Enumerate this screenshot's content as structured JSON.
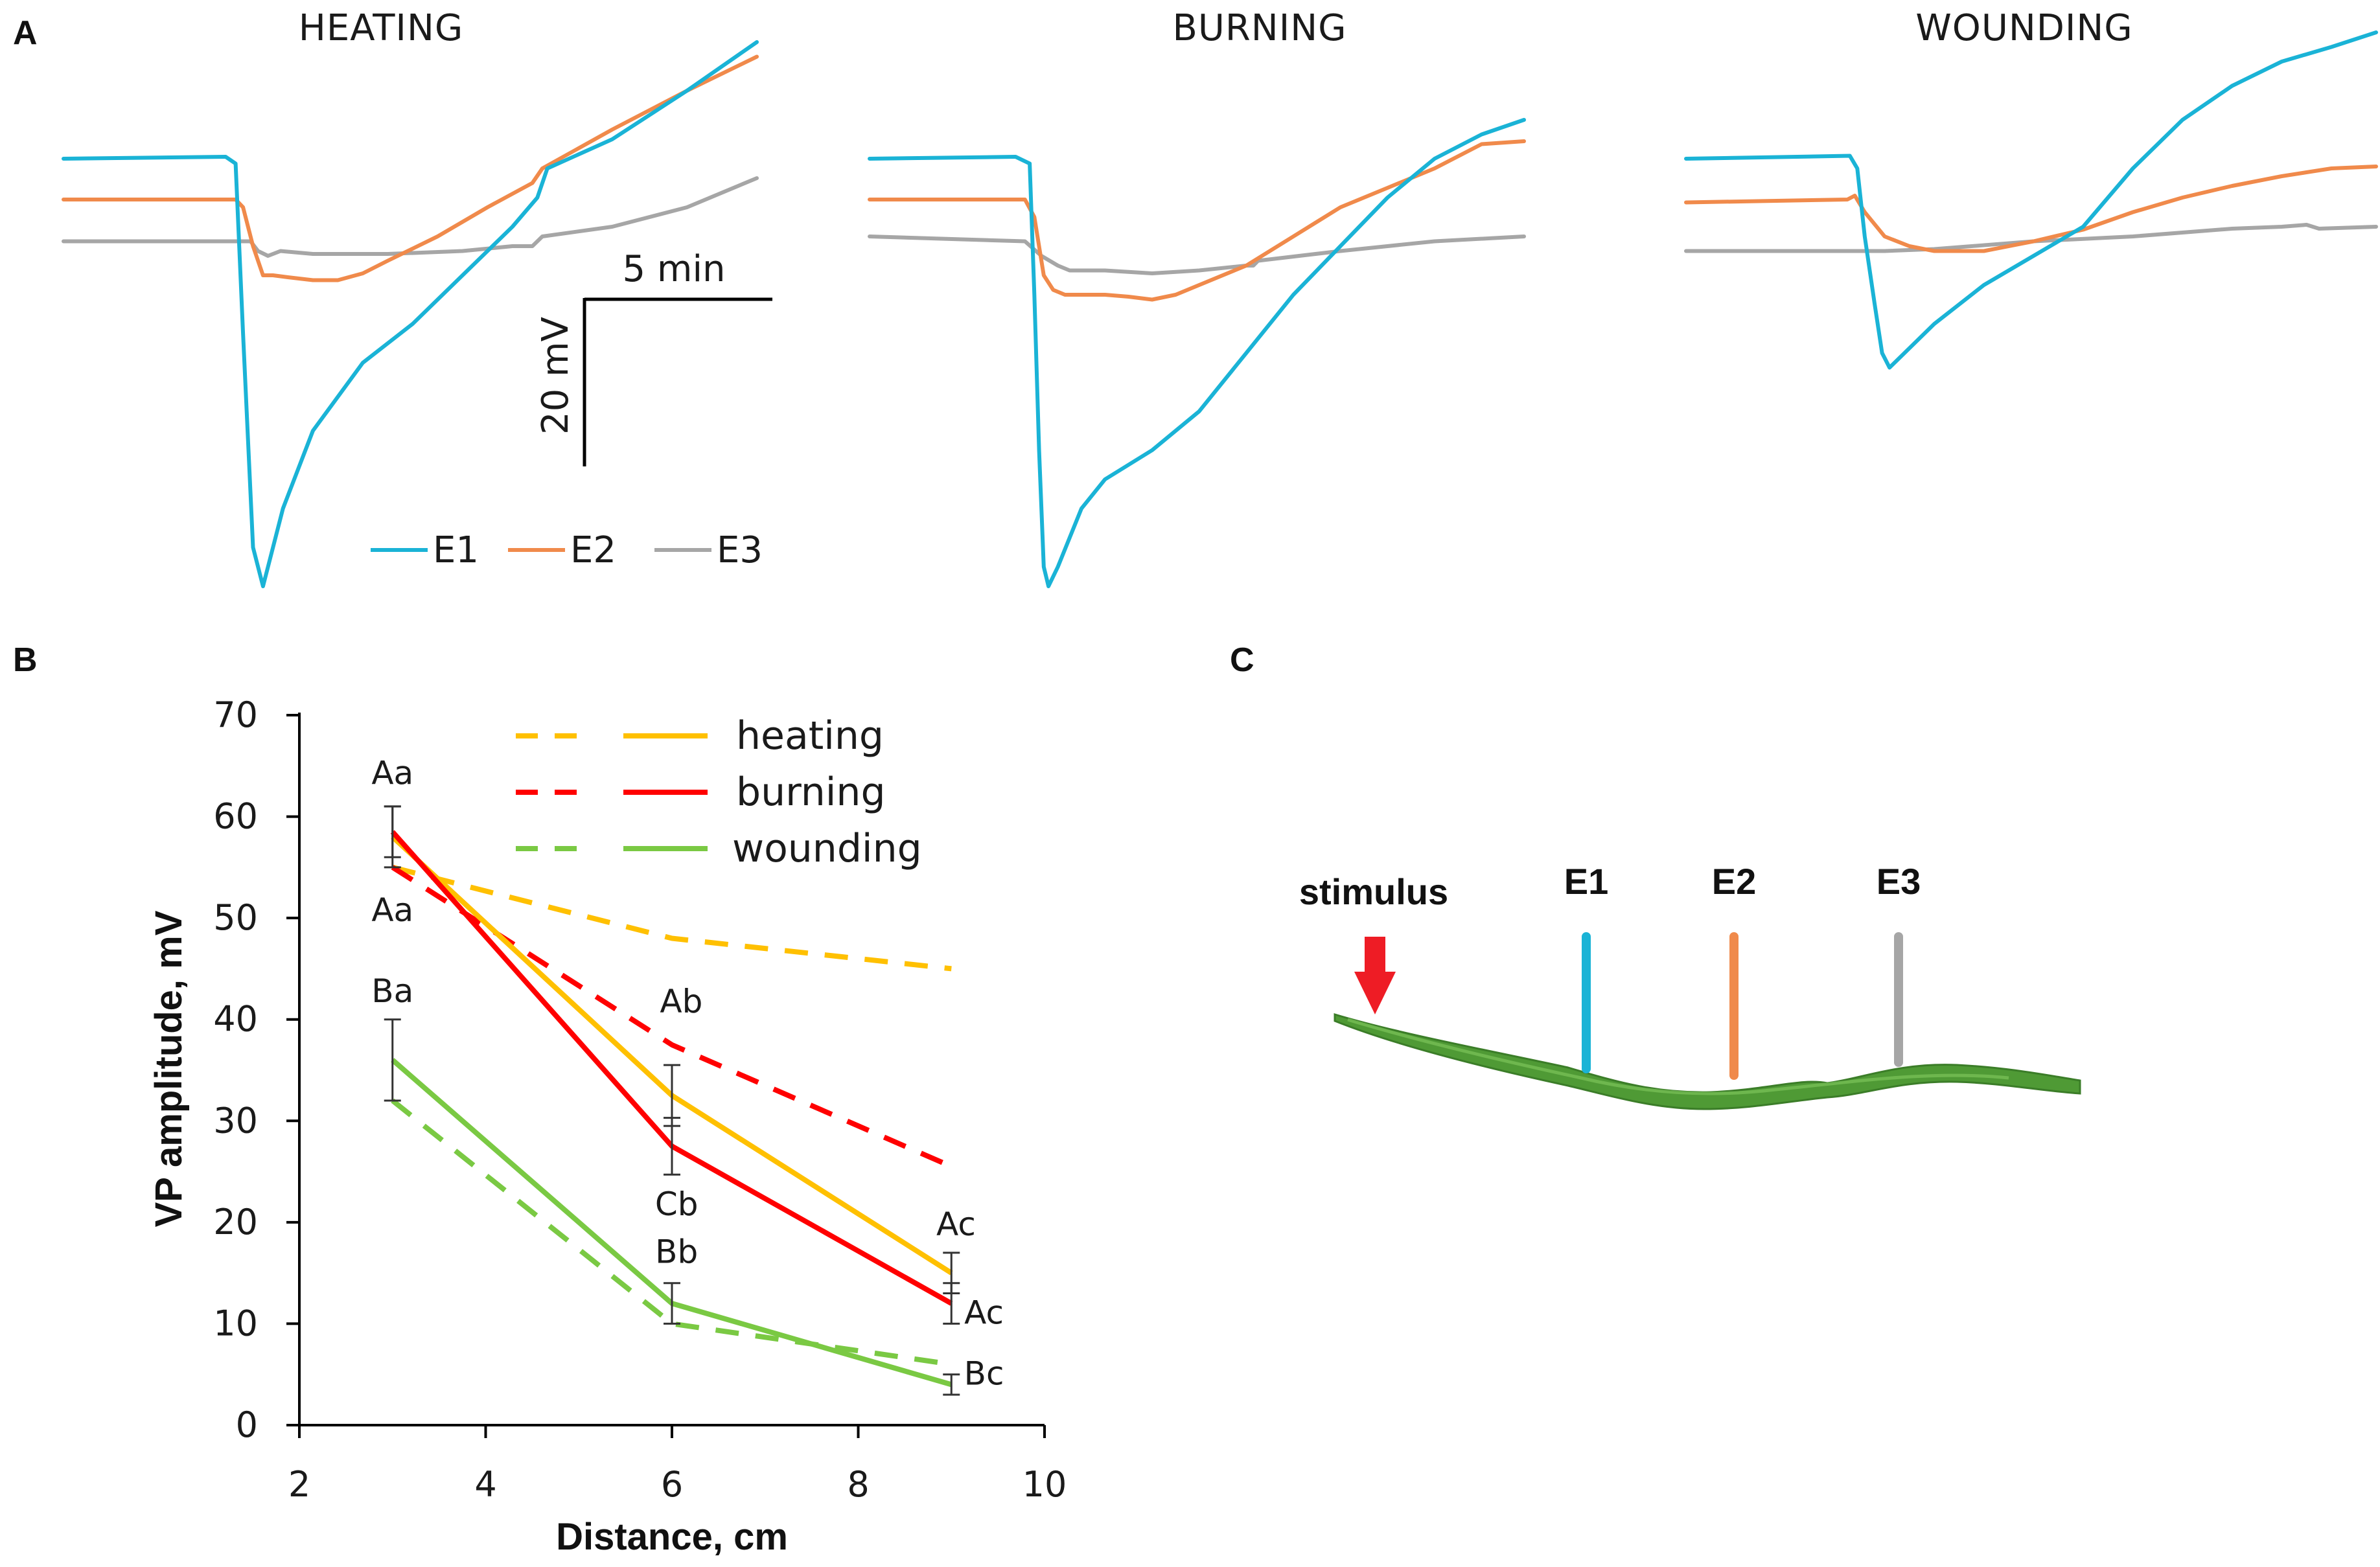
{
  "panels": {
    "a": {
      "letter": "A"
    },
    "b": {
      "letter": "B"
    },
    "c": {
      "letter": "C"
    }
  },
  "panel_a": {
    "titles": [
      "HEATING",
      "BURNING",
      "WOUNDING"
    ],
    "scale_bar": {
      "time_label": "5 min",
      "voltage_label": "20 mV"
    },
    "legend": [
      {
        "name": "E1",
        "color": "#1ab3d6"
      },
      {
        "name": "E2",
        "color": "#f08a4b"
      },
      {
        "name": "E3",
        "color": "#a6a6a6"
      }
    ]
  },
  "panel_c": {
    "stimulus_label": "stimulus",
    "electrodes": [
      {
        "name": "E1",
        "color": "#1ab3d6"
      },
      {
        "name": "E2",
        "color": "#f08a4b"
      },
      {
        "name": "E3",
        "color": "#a6a6a6"
      }
    ],
    "arrow_color": "#ee1c25",
    "stem_color": "#3d8c2a"
  },
  "chart_data": [
    {
      "type": "line",
      "panel": "A",
      "title": "HEATING",
      "xlabel": "",
      "ylabel": "",
      "units": {
        "x": "min",
        "y": "mV"
      },
      "xlim": [
        0,
        27.8
      ],
      "ylim": [
        -44,
        14
      ],
      "series": [
        {
          "name": "E1",
          "color": "#1ab3d6",
          "x": [
            0,
            6.5,
            6.9,
            7.2,
            7.6,
            8.0,
            8.8,
            10.0,
            12.0,
            14.0,
            16.0,
            18.0,
            19.0,
            19.4,
            22.0,
            25.0,
            27.8
          ],
          "y": [
            0,
            0.2,
            -0.5,
            -18,
            -40,
            -44,
            -36,
            -28,
            -21,
            -17,
            -12,
            -7,
            -4,
            -1,
            2,
            7,
            12
          ]
        },
        {
          "name": "E2",
          "color": "#f08a4b",
          "x": [
            0,
            6.9,
            7.2,
            7.6,
            8.0,
            8.4,
            9.0,
            10.0,
            11.0,
            12.0,
            13.0,
            15.0,
            17.0,
            18.8,
            19.2,
            22.0,
            25.0,
            27.8
          ],
          "y": [
            -4.2,
            -4.2,
            -5,
            -9,
            -12,
            -12,
            -12.2,
            -12.5,
            -12.5,
            -11.8,
            -10.5,
            -8,
            -5,
            -2.5,
            -1,
            3,
            7,
            10.5
          ]
        },
        {
          "name": "E3",
          "color": "#a6a6a6",
          "x": [
            0,
            7.5,
            7.8,
            8.2,
            8.7,
            10.0,
            13.0,
            16.0,
            18.0,
            18.8,
            19.2,
            22.0,
            25.0,
            27.8
          ],
          "y": [
            -8.5,
            -8.5,
            -9.5,
            -10,
            -9.5,
            -9.8,
            -9.8,
            -9.5,
            -9,
            -9,
            -8,
            -7,
            -5,
            -2
          ]
        }
      ]
    },
    {
      "type": "line",
      "panel": "A",
      "title": "BURNING",
      "xlabel": "",
      "ylabel": "",
      "units": {
        "x": "min",
        "y": "mV"
      },
      "xlim": [
        0,
        27.8
      ],
      "ylim": [
        -44,
        14
      ],
      "series": [
        {
          "name": "E1",
          "color": "#1ab3d6",
          "x": [
            0,
            6.2,
            6.8,
            7.0,
            7.2,
            7.4,
            7.6,
            8.0,
            9.0,
            10.0,
            12.0,
            14.0,
            16.0,
            18.0,
            20.0,
            22.0,
            24.0,
            26.0,
            27.8
          ],
          "y": [
            0,
            0.2,
            -0.5,
            -14,
            -30,
            -42,
            -44,
            -42,
            -36,
            -33,
            -30,
            -26,
            -20,
            -14,
            -9,
            -4,
            0,
            2.5,
            4
          ]
        },
        {
          "name": "E2",
          "color": "#f08a4b",
          "x": [
            0,
            6.6,
            7.0,
            7.4,
            7.8,
            8.3,
            9.0,
            10.0,
            11.0,
            12.0,
            13.0,
            14.0,
            16.0,
            18.0,
            20.0,
            22.0,
            24.0,
            26.0,
            27.8
          ],
          "y": [
            -4.2,
            -4.2,
            -6,
            -12,
            -13.5,
            -14,
            -14,
            -14,
            -14.2,
            -14.5,
            -14,
            -13,
            -11,
            -8,
            -5,
            -3,
            -1,
            1.5,
            1.8
          ]
        },
        {
          "name": "E3",
          "color": "#a6a6a6",
          "x": [
            0,
            6.6,
            7.3,
            8.0,
            8.5,
            10.0,
            12.0,
            14.0,
            16.0,
            16.3,
            16.5,
            20.0,
            24.0,
            27.8
          ],
          "y": [
            -8,
            -8.5,
            -10,
            -11,
            -11.5,
            -11.5,
            -11.8,
            -11.5,
            -11,
            -11,
            -10.5,
            -9.5,
            -8.5,
            -8
          ]
        }
      ]
    },
    {
      "type": "line",
      "panel": "A",
      "title": "WOUNDING",
      "xlabel": "",
      "ylabel": "",
      "units": {
        "x": "min",
        "y": "mV"
      },
      "xlim": [
        0,
        27.8
      ],
      "ylim": [
        -44,
        14
      ],
      "series": [
        {
          "name": "E1",
          "color": "#1ab3d6",
          "x": [
            0,
            6.6,
            6.9,
            7.2,
            7.6,
            7.9,
            8.2,
            8.8,
            10.0,
            12.0,
            14.0,
            16.0,
            18.0,
            20.0,
            22.0,
            24.0,
            26.0,
            27.8
          ],
          "y": [
            0,
            0.3,
            -1,
            -8,
            -15,
            -20,
            -21.5,
            -20,
            -17,
            -13,
            -10,
            -7,
            -1,
            4,
            7.5,
            10,
            11.5,
            13
          ]
        },
        {
          "name": "E2",
          "color": "#f08a4b",
          "x": [
            0,
            6.5,
            6.8,
            7.2,
            8.0,
            9.0,
            10.0,
            12.0,
            14.0,
            16.0,
            18.0,
            20.0,
            22.0,
            24.0,
            26.0,
            27.8
          ],
          "y": [
            -4.5,
            -4.2,
            -3.8,
            -5.5,
            -8,
            -9,
            -9.5,
            -9.5,
            -8.5,
            -7.3,
            -5.5,
            -4,
            -2.8,
            -1.8,
            -1,
            -0.8
          ]
        },
        {
          "name": "E3",
          "color": "#a6a6a6",
          "x": [
            0,
            6.0,
            8.0,
            10.0,
            14.0,
            18.0,
            22.0,
            24.0,
            25.0,
            25.5,
            27.8
          ],
          "y": [
            -9.5,
            -9.5,
            -9.5,
            -9.3,
            -8.5,
            -8,
            -7.2,
            -7,
            -6.8,
            -7.2,
            -7
          ]
        }
      ]
    },
    {
      "type": "line",
      "panel": "B",
      "title": "",
      "xlabel": "Distance, cm",
      "ylabel": "VP amplitude, mV",
      "xlim": [
        2,
        10
      ],
      "ylim": [
        0,
        70
      ],
      "xticks": [
        2,
        4,
        6,
        8,
        10
      ],
      "yticks": [
        0,
        10,
        20,
        30,
        40,
        50,
        60,
        70
      ],
      "grid": false,
      "legend_position": "top-right",
      "legend": [
        {
          "name": "heating",
          "color": "#ffc000"
        },
        {
          "name": "burning",
          "color": "#ff0000"
        },
        {
          "name": "wounding",
          "color": "#7ac943"
        }
      ],
      "series": [
        {
          "name": "heating",
          "style": "dashed",
          "color": "#ffc000",
          "x": [
            3,
            6,
            9
          ],
          "y": [
            55,
            48,
            45
          ]
        },
        {
          "name": "burning",
          "style": "dashed",
          "color": "#ff0000",
          "x": [
            3,
            6,
            9
          ],
          "y": [
            55,
            37.5,
            25.5
          ]
        },
        {
          "name": "wounding",
          "style": "dashed",
          "color": "#7ac943",
          "x": [
            3,
            6,
            9
          ],
          "y": [
            32,
            10,
            6
          ]
        },
        {
          "name": "heating",
          "style": "solid",
          "color": "#ffc000",
          "x": [
            3,
            6,
            9
          ],
          "y": [
            58,
            32.5,
            15
          ],
          "err": [
            3,
            3,
            2
          ]
        },
        {
          "name": "burning",
          "style": "solid",
          "color": "#ff0000",
          "x": [
            3,
            6,
            9
          ],
          "y": [
            58.5,
            27.5,
            12
          ],
          "err": [
            2.5,
            2.8,
            2
          ]
        },
        {
          "name": "wounding",
          "style": "solid",
          "color": "#7ac943",
          "x": [
            3,
            6,
            9
          ],
          "y": [
            36,
            12,
            4
          ],
          "err": [
            4,
            2,
            1
          ]
        }
      ],
      "annotations": [
        {
          "text": "Aa",
          "x": 3.0,
          "y": 63.2,
          "anchor": "middle"
        },
        {
          "text": "Aa",
          "x": 3.0,
          "y": 49.7,
          "anchor": "middle"
        },
        {
          "text": "Ba",
          "x": 3.0,
          "y": 41.7,
          "anchor": "middle"
        },
        {
          "text": "Ab",
          "x": 6.1,
          "y": 40.7,
          "anchor": "middle"
        },
        {
          "text": "Cb",
          "x": 6.05,
          "y": 20.7,
          "anchor": "middle"
        },
        {
          "text": "Bb",
          "x": 6.05,
          "y": 16.0,
          "anchor": "middle"
        },
        {
          "text": "Ac",
          "x": 9.05,
          "y": 18.7,
          "anchor": "middle"
        },
        {
          "text": "Ac",
          "x": 9.35,
          "y": 10.0,
          "anchor": "middle"
        },
        {
          "text": "Bc",
          "x": 9.35,
          "y": 4.0,
          "anchor": "middle"
        }
      ]
    }
  ]
}
